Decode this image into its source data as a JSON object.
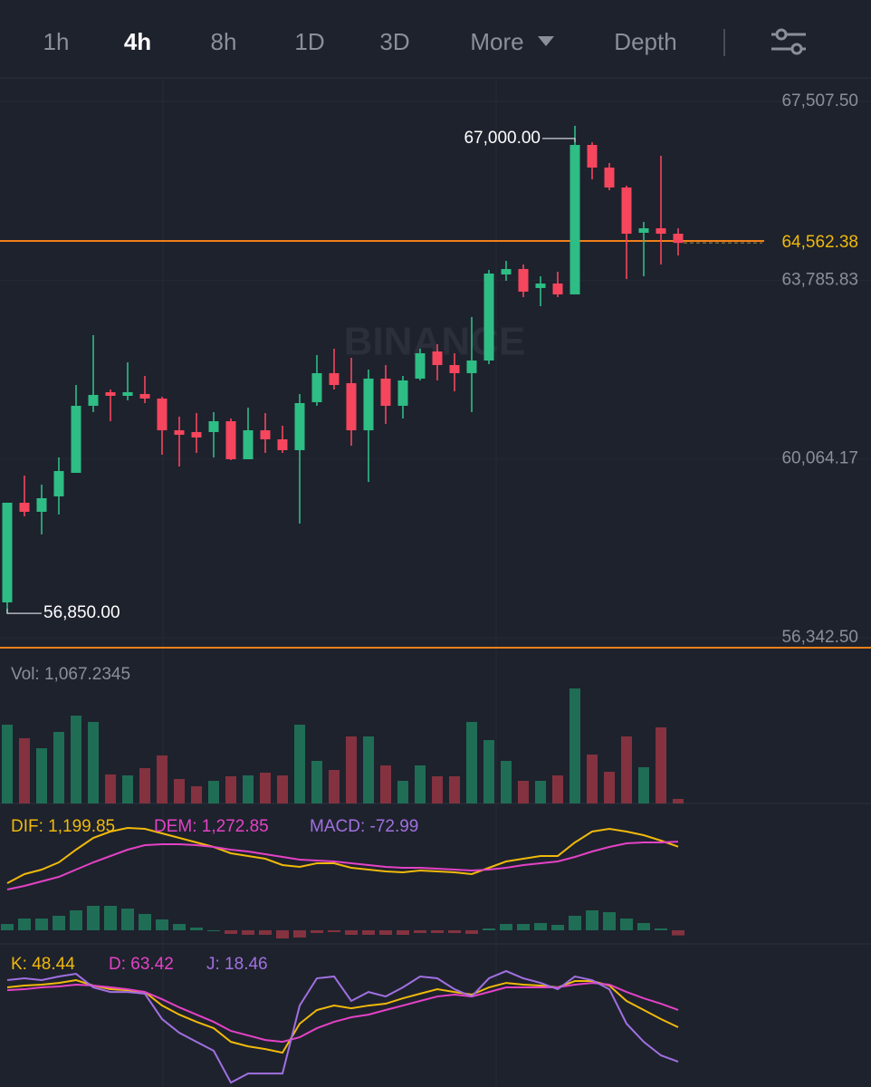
{
  "tabs": [
    "1h",
    "4h",
    "8h",
    "1D",
    "3D",
    "More",
    "Depth"
  ],
  "active_tab": 1,
  "chart_data": [
    {
      "type": "candlestick",
      "watermark": "BINANCE",
      "open": [
        57078,
        59153,
        58964,
        59285,
        59775,
        61171,
        61454,
        61378,
        61416,
        61322,
        60661,
        60624,
        60624,
        60850,
        60058,
        60661,
        60473,
        60247,
        61246,
        61850,
        61642,
        60661,
        61737,
        61171,
        61737,
        62302,
        62019,
        61850,
        62114,
        63905,
        64019,
        63623,
        63717,
        63490,
        66602,
        66131,
        65716,
        64773,
        64867,
        64754
      ],
      "high": [
        59153,
        59718,
        59530,
        60096,
        61604,
        62642,
        61510,
        62076,
        61793,
        61359,
        60944,
        61020,
        61039,
        60907,
        61133,
        61020,
        60756,
        61416,
        62227,
        62359,
        62170,
        61925,
        62019,
        61793,
        62359,
        62453,
        62265,
        63019,
        64000,
        64188,
        64113,
        63868,
        63962,
        67000,
        66659,
        66225,
        65754,
        64999,
        66376,
        64867
      ],
      "low": [
        56850,
        58870,
        58493,
        58908,
        59775,
        61039,
        60850,
        61284,
        61227,
        60152,
        59907,
        60190,
        60096,
        60039,
        60058,
        60190,
        60190,
        58719,
        61171,
        61510,
        60341,
        59586,
        60794,
        60907,
        61699,
        61699,
        61472,
        61039,
        62038,
        63773,
        63434,
        63245,
        63434,
        63490,
        65886,
        65659,
        63811,
        63868,
        64113,
        64301
      ],
      "close": [
        59153,
        58964,
        59247,
        59813,
        61171,
        61397,
        61378,
        61454,
        61322,
        60661,
        60567,
        60511,
        60850,
        60058,
        60661,
        60473,
        60247,
        61227,
        61850,
        61604,
        60661,
        61737,
        61171,
        61699,
        62265,
        62019,
        61850,
        62114,
        63924,
        64019,
        63547,
        63717,
        63490,
        66602,
        66131,
        65716,
        64754,
        64867,
        64754,
        64562.38
      ],
      "up_color": "#2ebd85",
      "down_color": "#f6465d",
      "ylim": [
        56342.5,
        67507.5
      ],
      "yticks": [
        {
          "value": 67507.5,
          "label": "67,507.50"
        },
        {
          "value": 63785.83,
          "label": "63,785.83"
        },
        {
          "value": 60064.17,
          "label": "60,064.17"
        },
        {
          "value": 56342.5,
          "label": "56,342.50"
        }
      ],
      "grid": true,
      "last_price": {
        "value": 64562.38,
        "label": "64,562.38"
      },
      "annotations": [
        {
          "value": 67000,
          "label": "67,000.00"
        },
        {
          "value": 56850,
          "label": "56,850.00"
        }
      ]
    },
    {
      "type": "bar",
      "title": "Vol: 1,067.2345",
      "values": [
        18566,
        15365,
        13017,
        16859,
        20700,
        19206,
        6829,
        6615,
        8323,
        11310,
        5762,
        4055,
        5335,
        6402,
        6615,
        7256,
        6615,
        18566,
        10030,
        7896,
        15792,
        15792,
        8963,
        5335,
        8963,
        6402,
        6402,
        19206,
        14938,
        10030,
        5335,
        5335,
        6615,
        27102,
        11524,
        7469,
        15792,
        8536,
        17926,
        1067.2345
      ],
      "up_color": "#1f6d55",
      "down_color": "#84323f",
      "ylim": [
        0,
        31370
      ]
    },
    {
      "type": "line",
      "series": [
        {
          "name": "DIF: 1,199.85",
          "color": "#f0b90b",
          "values": [
            676,
            806,
            871,
            975,
            1157,
            1326,
            1417,
            1469,
            1456,
            1391,
            1326,
            1261,
            1196,
            1105,
            1066,
            1027,
            936,
            910,
            962,
            962,
            897,
            871,
            845,
            832,
            858,
            845,
            832,
            806,
            897,
            988,
            1027,
            1066,
            1066,
            1261,
            1417,
            1456,
            1417,
            1365,
            1287,
            1199.85
          ]
        },
        {
          "name": "DEM: 1,272.85",
          "color": "#e442c6",
          "values": [
            585,
            637,
            702,
            767,
            871,
            975,
            1066,
            1157,
            1222,
            1235,
            1235,
            1222,
            1196,
            1157,
            1131,
            1092,
            1053,
            1014,
            1001,
            988,
            962,
            936,
            910,
            897,
            897,
            884,
            871,
            858,
            871,
            897,
            936,
            962,
            988,
            1053,
            1131,
            1196,
            1248,
            1261,
            1261,
            1272.85
          ]
        }
      ],
      "histogram": {
        "name": "MACD: -72.99",
        "color": "#a070e0",
        "up_color": "#1f6d55",
        "down_color": "#84323f",
        "values": [
          91,
          169,
          169,
          208,
          286,
          351,
          351,
          312,
          234,
          156,
          91,
          39,
          0,
          -52,
          -65,
          -65,
          -117,
          -104,
          -39,
          -26,
          -65,
          -65,
          -65,
          -65,
          -39,
          -39,
          -39,
          -52,
          26,
          91,
          91,
          104,
          78,
          208,
          286,
          260,
          169,
          104,
          26,
          -72.99
        ]
      },
      "ylim": [
        -169,
        1742
      ]
    },
    {
      "type": "line",
      "series": [
        {
          "name": "K: 48.44",
          "color": "#f0b90b",
          "values": [
            83.1,
            84.7,
            85.5,
            87.0,
            89.4,
            84.7,
            81.5,
            80.7,
            79.1,
            67.3,
            59.4,
            53.1,
            47.6,
            35.7,
            31.8,
            29.4,
            26.3,
            51.5,
            63.4,
            67.3,
            64.9,
            67.3,
            68.9,
            73.6,
            77.6,
            81.5,
            79.1,
            76.8,
            83.1,
            87.0,
            85.5,
            84.7,
            83.1,
            88.6,
            88.6,
            84.7,
            71.3,
            63.4,
            55.5,
            48.44
          ]
        },
        {
          "name": "D: 63.42",
          "color": "#e442c6",
          "values": [
            80.7,
            81.5,
            83.1,
            83.9,
            85.5,
            84.7,
            83.1,
            81.5,
            79.1,
            72.8,
            65.7,
            59.4,
            53.1,
            45.2,
            41.3,
            37.3,
            35.7,
            39.7,
            47.6,
            53.1,
            57.1,
            59.4,
            63.4,
            67.3,
            71.3,
            75.2,
            76.8,
            75.2,
            79.1,
            83.1,
            83.1,
            83.1,
            83.1,
            85.5,
            87.0,
            85.5,
            79.1,
            73.6,
            68.9,
            63.42
          ]
        },
        {
          "name": "J: 18.46",
          "color": "#a070e0",
          "values": [
            89.4,
            91.0,
            89.4,
            92.6,
            94.9,
            83.1,
            79.1,
            79.1,
            77.6,
            55.5,
            43.6,
            35.7,
            27.9,
            0.2,
            8.1,
            8.1,
            8.1,
            67.3,
            91.0,
            92.6,
            71.3,
            79.1,
            75.2,
            83.1,
            92.6,
            91.0,
            81.5,
            75.2,
            91.0,
            97.3,
            91.0,
            87.0,
            81.5,
            92.6,
            89.4,
            81.5,
            51.5,
            35.7,
            23.9,
            18.46
          ]
        }
      ],
      "ylim": [
        -3.6,
        118.6
      ]
    }
  ]
}
